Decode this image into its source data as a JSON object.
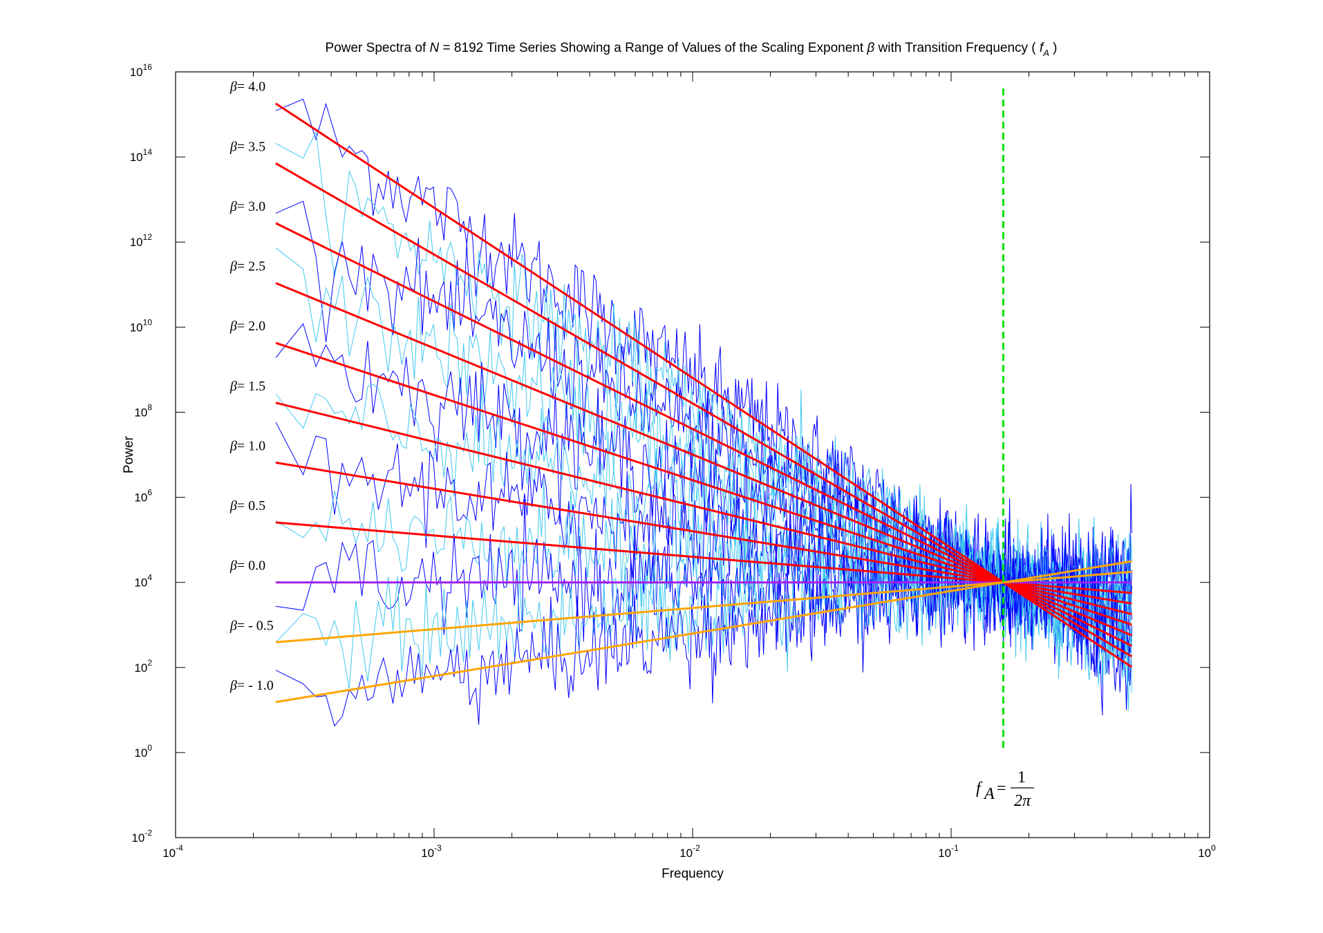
{
  "chart_data": {
    "type": "line",
    "title": {
      "prefix": "Power Spectra of ",
      "N_symbol": "N",
      "middle": " = 8192 Time Series Showing a Range of Values of the Scaling Exponent ",
      "beta_symbol": "β",
      "suffix": " with Transition Frequency ( ",
      "fa_symbol": "f",
      "fa_subscript": "A",
      "end": " )"
    },
    "xlabel": "Frequency",
    "ylabel": "Power",
    "x_scale": "log",
    "y_scale": "log",
    "xlim": [
      0.0001,
      1
    ],
    "ylim": [
      0.01,
      10000000000000000
    ],
    "x_ticks": [
      {
        "base": "10",
        "exp": "-4",
        "value": 0.0001
      },
      {
        "base": "10",
        "exp": "-3",
        "value": 0.001
      },
      {
        "base": "10",
        "exp": "-2",
        "value": 0.01
      },
      {
        "base": "10",
        "exp": "-1",
        "value": 0.1
      },
      {
        "base": "10",
        "exp": "0",
        "value": 1
      }
    ],
    "y_ticks": [
      {
        "base": "10",
        "exp": "-2",
        "value": 0.01
      },
      {
        "base": "10",
        "exp": "0",
        "value": 1
      },
      {
        "base": "10",
        "exp": "2",
        "value": 100
      },
      {
        "base": "10",
        "exp": "4",
        "value": 10000
      },
      {
        "base": "10",
        "exp": "6",
        "value": 1000000
      },
      {
        "base": "10",
        "exp": "8",
        "value": 100000000
      },
      {
        "base": "10",
        "exp": "10",
        "value": 10000000000
      },
      {
        "base": "10",
        "exp": "12",
        "value": 1000000000000
      },
      {
        "base": "10",
        "exp": "14",
        "value": 100000000000000
      },
      {
        "base": "10",
        "exp": "16",
        "value": 10000000000000000
      }
    ],
    "grid": false,
    "transition_frequency": 0.159155,
    "transition_power": 10000,
    "frequency_range": [
      0.000244,
      0.5
    ],
    "fit_lines": [
      {
        "beta": 4.0,
        "label": "= 4.0",
        "color": "#ff0000"
      },
      {
        "beta": 3.5,
        "label": "= 3.5",
        "color": "#ff0000"
      },
      {
        "beta": 3.0,
        "label": "= 3.0",
        "color": "#ff0000"
      },
      {
        "beta": 2.5,
        "label": "= 2.5",
        "color": "#ff0000"
      },
      {
        "beta": 2.0,
        "label": "= 2.0",
        "color": "#ff0000"
      },
      {
        "beta": 1.5,
        "label": "= 1.5",
        "color": "#ff0000"
      },
      {
        "beta": 1.0,
        "label": "= 1.0",
        "color": "#ff0000"
      },
      {
        "beta": 0.5,
        "label": "= 0.5",
        "color": "#ff0000"
      },
      {
        "beta": 0.0,
        "label": "= 0.0",
        "color": "#a020f0"
      },
      {
        "beta": -0.5,
        "label": "= - 0.5",
        "color": "#ffa500"
      },
      {
        "beta": -1.0,
        "label": "= - 1.0",
        "color": "#ffa500"
      }
    ],
    "spectra_colors": {
      "dark": "#0000ff",
      "light": "#40c8f0"
    },
    "transition_line_color": "#00e000",
    "annotation": {
      "f": "f",
      "sub": "A",
      "eq": "=",
      "num": "1",
      "den": "2π"
    }
  }
}
